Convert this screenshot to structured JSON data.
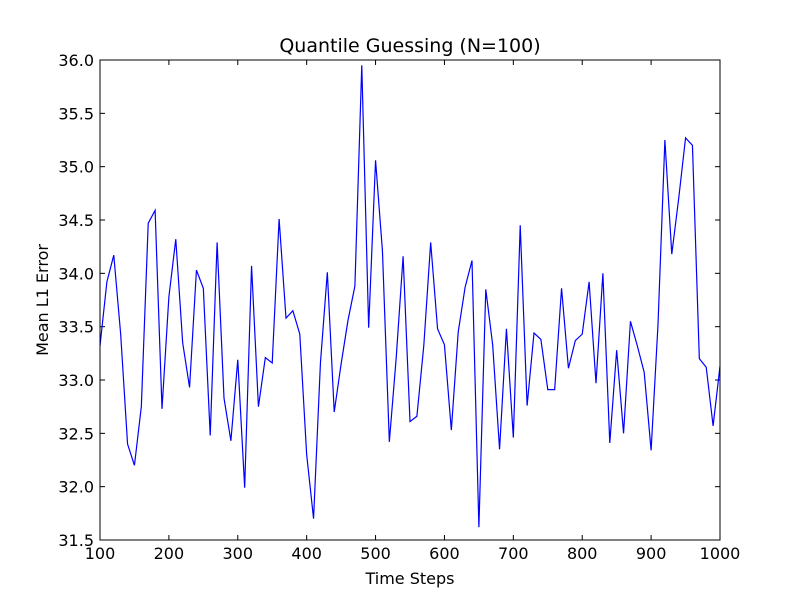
{
  "chart_data": {
    "type": "line",
    "title": "Quantile Guessing (N=100)",
    "xlabel": "Time Steps",
    "ylabel": "Mean L1 Error",
    "xlim": [
      100,
      1000
    ],
    "ylim": [
      31.5,
      36.0
    ],
    "xticks": [
      "100",
      "200",
      "300",
      "400",
      "500",
      "600",
      "700",
      "800",
      "900",
      "1000"
    ],
    "yticks": [
      "31.5",
      "32.0",
      "32.5",
      "33.0",
      "33.5",
      "34.0",
      "34.5",
      "35.0",
      "35.5",
      "36.0"
    ],
    "grid": false,
    "line_color": "#0000ff",
    "series": [
      {
        "x": [
          100,
          110,
          120,
          130,
          140,
          150,
          160,
          170,
          180,
          190,
          200,
          210,
          220,
          230,
          240,
          250,
          260,
          270,
          280,
          290,
          300,
          310,
          320,
          330,
          340,
          350,
          360,
          370,
          380,
          390,
          400,
          410,
          420,
          430,
          440,
          450,
          460,
          470,
          480,
          490,
          500,
          510,
          520,
          530,
          540,
          550,
          560,
          570,
          580,
          590,
          600,
          610,
          620,
          630,
          640,
          650,
          660,
          670,
          680,
          690,
          700,
          710,
          720,
          730,
          740,
          750,
          760,
          770,
          780,
          790,
          800,
          810,
          820,
          830,
          840,
          850,
          860,
          870,
          880,
          890,
          900,
          910,
          920,
          930,
          940,
          950,
          960,
          970,
          980,
          990,
          1000
        ],
        "values": [
          33.32,
          33.92,
          34.17,
          33.43,
          32.4,
          32.2,
          32.75,
          34.47,
          34.59,
          32.73,
          33.78,
          34.32,
          33.35,
          32.93,
          34.03,
          33.86,
          32.48,
          34.29,
          32.83,
          32.43,
          33.19,
          31.99,
          34.07,
          32.75,
          33.21,
          33.16,
          34.51,
          33.58,
          33.65,
          33.43,
          32.3,
          31.7,
          33.16,
          34.01,
          32.7,
          33.15,
          33.56,
          33.88,
          35.95,
          33.49,
          35.06,
          34.21,
          32.42,
          33.21,
          34.16,
          32.61,
          32.66,
          33.32,
          34.29,
          33.48,
          33.33,
          32.53,
          33.45,
          33.87,
          34.12,
          31.62,
          33.85,
          33.33,
          32.35,
          33.48,
          32.46,
          34.45,
          32.76,
          33.44,
          33.38,
          32.91,
          32.91,
          33.86,
          33.11,
          33.37,
          33.43,
          33.92,
          32.97,
          34.0,
          32.41,
          33.28,
          32.5,
          33.55,
          33.32,
          33.07,
          32.34,
          33.52,
          35.25,
          34.18,
          34.7,
          35.27,
          35.2,
          33.2,
          33.12,
          32.57,
          33.13
        ]
      }
    ]
  }
}
